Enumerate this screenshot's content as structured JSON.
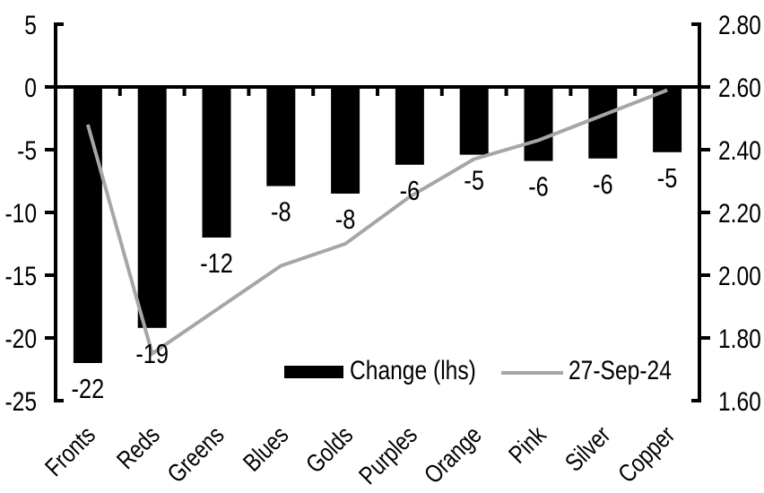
{
  "chart_data": {
    "type": "combo_bar_line",
    "title": "",
    "categories": [
      "Fronts",
      "Reds",
      "Greens",
      "Blues",
      "Golds",
      "Purples",
      "Orange",
      "Pink",
      "Silver",
      "Copper"
    ],
    "series": [
      {
        "name": "Change (lhs)",
        "type": "bar",
        "axis": "left",
        "color": "#000000",
        "values": [
          -22,
          -19.2,
          -12,
          -7.9,
          -8.5,
          -6.2,
          -5.4,
          -5.9,
          -5.7,
          -5.2
        ],
        "data_labels": [
          "-22",
          "-19",
          "-12",
          "-8",
          "-8",
          "-6",
          "-5",
          "-6",
          "-6",
          "-5"
        ]
      },
      {
        "name": "27-Sep-24",
        "type": "line",
        "axis": "right",
        "color": "#a6a6a6",
        "values": [
          2.48,
          1.75,
          1.89,
          2.03,
          2.1,
          2.25,
          2.37,
          2.43,
          2.51,
          2.59
        ]
      }
    ],
    "left_axis": {
      "min": -25,
      "max": 5,
      "tick_labels": [
        "5",
        "0",
        "-5",
        "-10",
        "-15",
        "-20",
        "-25"
      ]
    },
    "right_axis": {
      "min": 1.6,
      "max": 2.8,
      "tick_labels": [
        "2.80",
        "2.60",
        "2.40",
        "2.20",
        "2.00",
        "1.80",
        "1.60"
      ]
    },
    "legend": {
      "position": "bottom-inside",
      "entries": [
        "Change (lhs)",
        "27-Sep-24"
      ]
    },
    "grid": false
  },
  "style": {
    "background": "#ffffff",
    "axis_color": "#000000",
    "bar_color": "#000000",
    "line_color": "#a6a6a6",
    "text_color": "#000000"
  }
}
